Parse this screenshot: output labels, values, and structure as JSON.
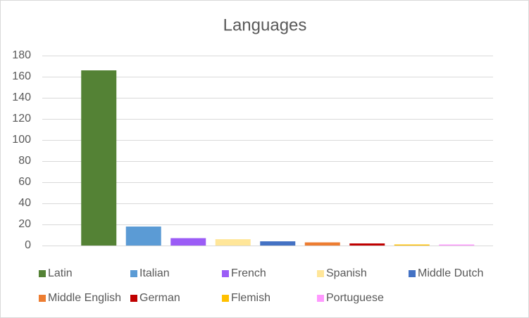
{
  "chart_data": {
    "type": "bar",
    "title": "Languages",
    "categories": [
      "Latin",
      "Italian",
      "French",
      "Spanish",
      "Middle Dutch",
      "Middle English",
      "German",
      "Flemish",
      "Portuguese"
    ],
    "values": [
      166,
      18,
      7,
      6,
      4,
      3,
      2,
      1,
      1
    ],
    "colors": [
      "#548235",
      "#5b9bd5",
      "#9b5cf6",
      "#ffe699",
      "#4472c4",
      "#ed7d31",
      "#c00000",
      "#ffc000",
      "#ff99ff"
    ],
    "ylim": [
      0,
      180
    ],
    "yticks": [
      0,
      20,
      40,
      60,
      80,
      100,
      120,
      140,
      160,
      180
    ],
    "grid": true,
    "legend": "bottom"
  }
}
